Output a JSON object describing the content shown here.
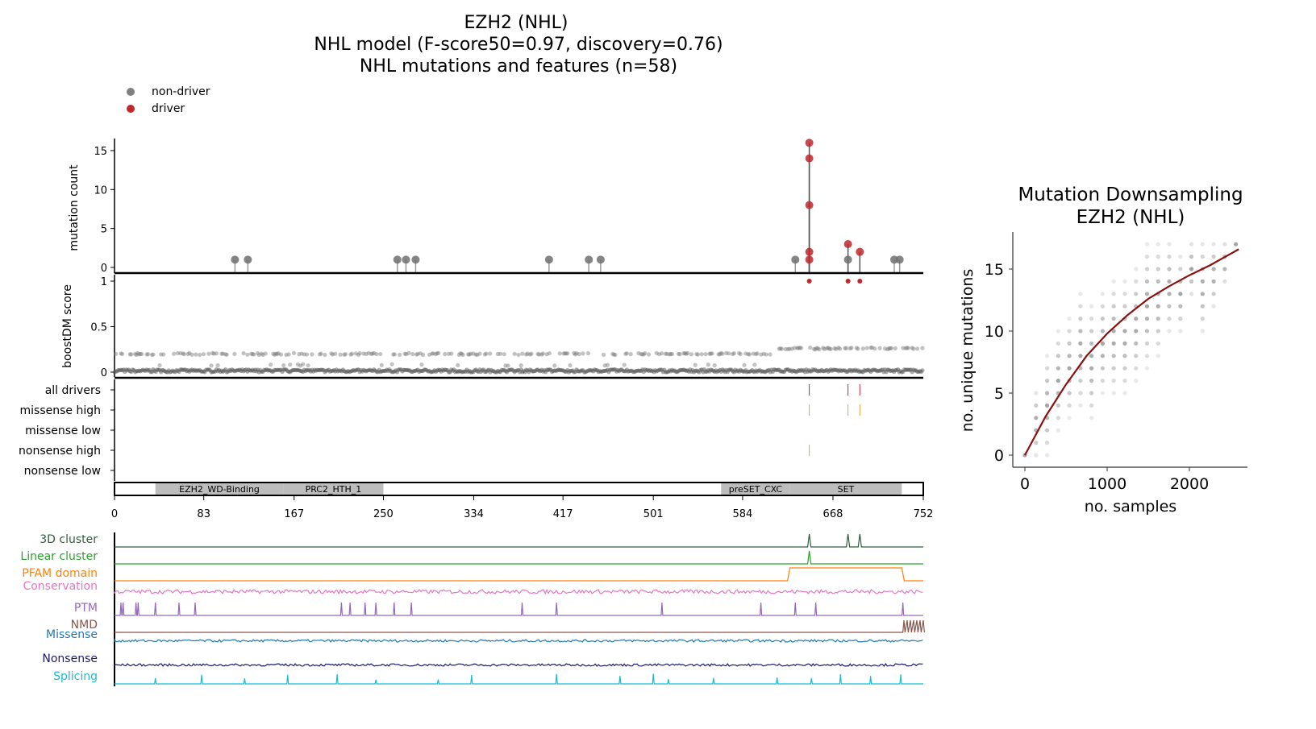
{
  "title": {
    "line1": "EZH2 (NHL)",
    "line2": "NHL model (F-score50=0.97, discovery=0.76)",
    "line3": "NHL mutations and features (n=58)"
  },
  "legend": [
    {
      "label": "non-driver",
      "color": "#808080"
    },
    {
      "label": "driver",
      "color": "#c0282d"
    }
  ],
  "chart_data": [
    {
      "type": "scatter",
      "name": "lollipop",
      "ylabel": "mutation count",
      "ylim": [
        0,
        17
      ],
      "yticks": [
        0,
        5,
        10,
        15
      ],
      "xlim": [
        0,
        752
      ],
      "xticks": [
        0,
        83,
        167,
        250,
        334,
        417,
        501,
        584,
        668,
        752
      ],
      "mutations": [
        {
          "pos": 112,
          "count": 1,
          "driver": false
        },
        {
          "pos": 124,
          "count": 1,
          "driver": false
        },
        {
          "pos": 263,
          "count": 1,
          "driver": false
        },
        {
          "pos": 271,
          "count": 1,
          "driver": false
        },
        {
          "pos": 280,
          "count": 1,
          "driver": false
        },
        {
          "pos": 404,
          "count": 1,
          "driver": false
        },
        {
          "pos": 441,
          "count": 1,
          "driver": false
        },
        {
          "pos": 452,
          "count": 1,
          "driver": false
        },
        {
          "pos": 633,
          "count": 1,
          "driver": false
        },
        {
          "pos": 646,
          "count": 16,
          "driver": true
        },
        {
          "pos": 646,
          "count": 14,
          "driver": true
        },
        {
          "pos": 646,
          "count": 8,
          "driver": true
        },
        {
          "pos": 646,
          "count": 2,
          "driver": true
        },
        {
          "pos": 646,
          "count": 1,
          "driver": true
        },
        {
          "pos": 682,
          "count": 1,
          "driver": false
        },
        {
          "pos": 682,
          "count": 3,
          "driver": true
        },
        {
          "pos": 693,
          "count": 2,
          "driver": true
        },
        {
          "pos": 725,
          "count": 1,
          "driver": false
        },
        {
          "pos": 730,
          "count": 1,
          "driver": false
        }
      ]
    },
    {
      "type": "scatter",
      "name": "boostdm",
      "ylabel": "boostDM score",
      "ylim": [
        0,
        1
      ],
      "yticks": [
        0,
        0.5,
        1
      ],
      "high_scores": [
        {
          "pos": 646,
          "score": 1
        },
        {
          "pos": 682,
          "score": 1
        },
        {
          "pos": 693,
          "score": 1
        }
      ],
      "typical_levels": [
        0,
        0.02,
        0.08,
        0.2,
        0.26
      ]
    },
    {
      "type": "table",
      "name": "driver-tracks",
      "rows": [
        {
          "label": "all drivers",
          "positions": [
            646,
            682,
            693
          ],
          "color": "#c0282d"
        },
        {
          "label": "missense high",
          "positions": [
            646,
            682,
            693
          ],
          "color": "#f0a030"
        },
        {
          "label": "missense low",
          "positions": [],
          "color": "#f0a030"
        },
        {
          "label": "nonsense high",
          "positions": [
            646
          ],
          "color": "#f0a030"
        },
        {
          "label": "nonsense low",
          "positions": [],
          "color": "#f0a030"
        }
      ]
    },
    {
      "type": "bar",
      "name": "domains",
      "domains": [
        {
          "label": "EZH2_WD-Binding",
          "start": 38,
          "end": 157
        },
        {
          "label": "PRC2_HTH_1",
          "start": 157,
          "end": 250
        },
        {
          "label": "preSET_CXC",
          "start": 564,
          "end": 628
        },
        {
          "label": "SET",
          "start": 628,
          "end": 732
        }
      ]
    },
    {
      "type": "line",
      "name": "feature-tracks",
      "tracks": [
        {
          "label": "3D cluster",
          "color": "#2f5e3c",
          "kind": "peaks",
          "positions": [
            646,
            682,
            693
          ]
        },
        {
          "label": "Linear cluster",
          "color": "#2ca02c",
          "kind": "peaks",
          "positions": [
            646
          ]
        },
        {
          "label": "PFAM domain",
          "color": "#ff7f0e",
          "kind": "step",
          "range": [
            628,
            732
          ]
        },
        {
          "label": "Conservation",
          "color": "#e377c2",
          "kind": "noise"
        },
        {
          "label": "PTM",
          "color": "#9467bd",
          "kind": "spikes",
          "positions": [
            6,
            8,
            20,
            22,
            38,
            60,
            75,
            211,
            219,
            233,
            243,
            260,
            276,
            379,
            411,
            509,
            601,
            633,
            652,
            733
          ]
        },
        {
          "label": "NMD",
          "color": "#8c564b",
          "kind": "nmd",
          "range": [
            733,
            752
          ]
        },
        {
          "label": "Missense",
          "color": "#1f77b4",
          "kind": "noise"
        },
        {
          "label": "Nonsense",
          "color": "#1a1a6e",
          "kind": "noise"
        },
        {
          "label": "Splicing",
          "color": "#17becf",
          "kind": "spikes",
          "positions": [
            38,
            81,
            121,
            161,
            207,
            243,
            301,
            332,
            411,
            470,
            501,
            515,
            557,
            616,
            648,
            675,
            703,
            731
          ]
        }
      ]
    },
    {
      "type": "scatter",
      "name": "downsampling",
      "title_line1": "Mutation Downsampling",
      "title_line2": "EZH2 (NHL)",
      "xlabel": "no. samples",
      "ylabel": "no. unique mutations",
      "xlim": [
        -130,
        2700
      ],
      "ylim": [
        -1,
        18
      ],
      "xticks": [
        0,
        1000,
        2000
      ],
      "yticks": [
        0,
        5,
        10,
        15
      ],
      "columns": [
        [
          0,
          0,
          0
        ],
        [
          135,
          0,
          5
        ],
        [
          270,
          0,
          8
        ],
        [
          405,
          2,
          10
        ],
        [
          540,
          3,
          11
        ],
        [
          675,
          4,
          13
        ],
        [
          810,
          3,
          12
        ],
        [
          945,
          5,
          13
        ],
        [
          1080,
          5,
          14
        ],
        [
          1215,
          5,
          14
        ],
        [
          1350,
          6,
          15
        ],
        [
          1485,
          7,
          17
        ],
        [
          1620,
          8,
          17
        ],
        [
          1755,
          10,
          17
        ],
        [
          1890,
          10,
          16
        ],
        [
          2025,
          13,
          17
        ],
        [
          2160,
          10,
          17
        ],
        [
          2295,
          12,
          17
        ],
        [
          2430,
          14,
          17
        ],
        [
          2565,
          17,
          17
        ]
      ],
      "fit_curve": {
        "color": "#8b1010",
        "x": [
          0,
          250,
          500,
          750,
          1000,
          1250,
          1500,
          1750,
          2000,
          2250,
          2600
        ],
        "y": [
          0,
          3.1,
          5.7,
          8.0,
          9.8,
          11.3,
          12.6,
          13.6,
          14.5,
          15.3,
          16.6
        ]
      }
    }
  ]
}
